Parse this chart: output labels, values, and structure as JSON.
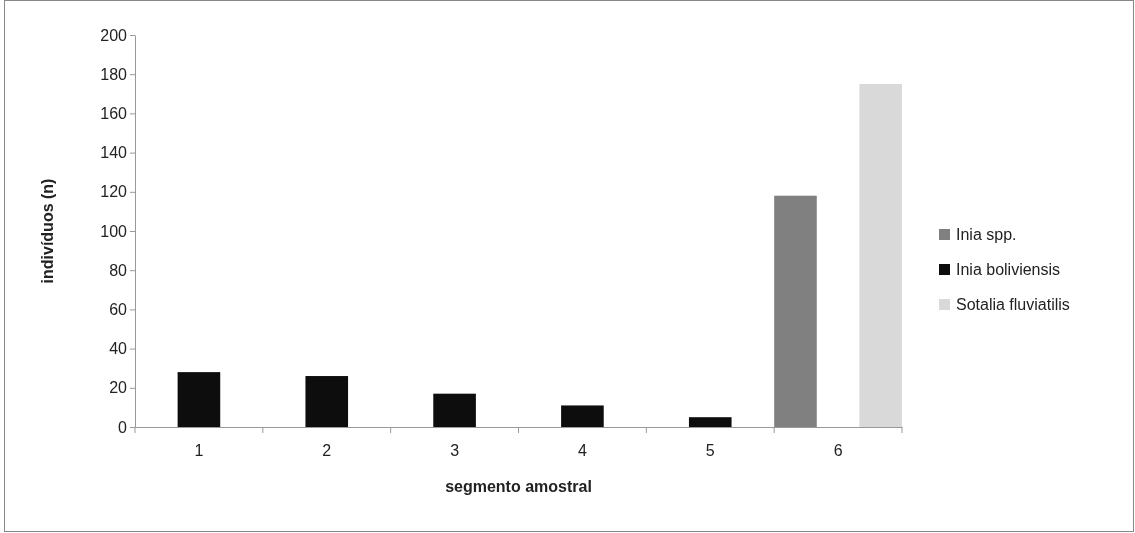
{
  "chart_data": {
    "type": "bar",
    "xlabel": "segmento amostral",
    "ylabel": "indivíduos (n)",
    "categories": [
      "1",
      "2",
      "3",
      "4",
      "5",
      "6"
    ],
    "series": [
      {
        "name": "Inia spp.",
        "color": "#808080",
        "values": [
          null,
          null,
          null,
          null,
          null,
          118
        ]
      },
      {
        "name": "Inia boliviensis",
        "color": "#0d0d0d",
        "values": [
          28,
          26,
          17,
          11,
          5,
          null
        ]
      },
      {
        "name": "Sotalia fluviatilis",
        "color": "#d9d9d9",
        "values": [
          null,
          null,
          null,
          null,
          null,
          175
        ]
      }
    ],
    "ylim": [
      0,
      200
    ],
    "yticks": [
      0,
      20,
      40,
      60,
      80,
      100,
      120,
      140,
      160,
      180,
      200
    ],
    "grid": false,
    "legend": "right"
  }
}
